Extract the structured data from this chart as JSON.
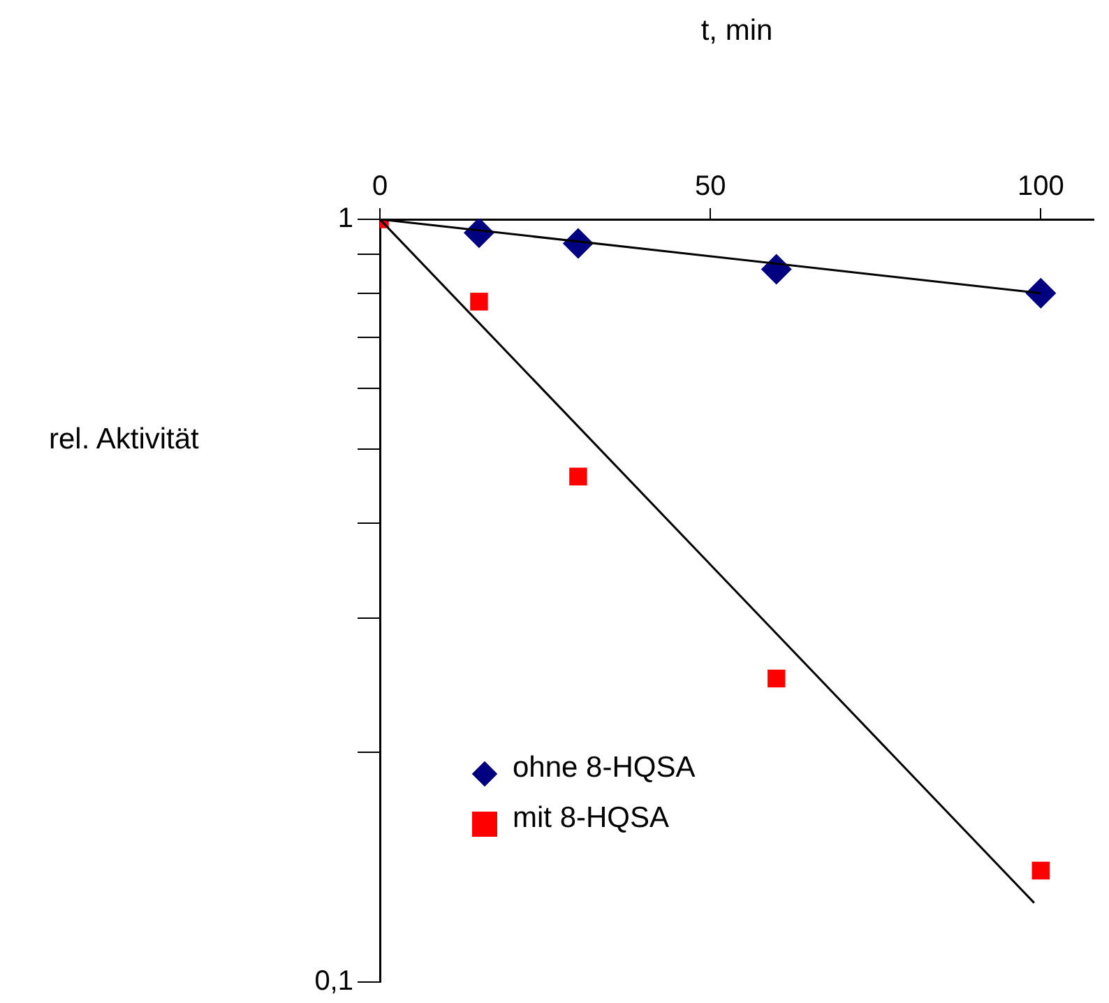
{
  "chart_data": {
    "type": "scatter",
    "xlabel": "t, min",
    "ylabel": "rel. Aktivität",
    "xlim": [
      0,
      108
    ],
    "xticks": [
      0,
      50,
      100
    ],
    "ylim": [
      0.1,
      1
    ],
    "yticks": [
      {
        "value": 0.1,
        "label": "0,1"
      },
      {
        "value": 0.2,
        "label": null
      },
      {
        "value": 0.3,
        "label": null
      },
      {
        "value": 0.4,
        "label": null
      },
      {
        "value": 0.5,
        "label": null
      },
      {
        "value": 0.6,
        "label": null
      },
      {
        "value": 0.7,
        "label": null
      },
      {
        "value": 0.8,
        "label": null
      },
      {
        "value": 0.9,
        "label": null
      },
      {
        "value": 1,
        "label": "1"
      }
    ],
    "log": "y",
    "grid": false,
    "legend": "bottom left",
    "series": [
      {
        "name": "ohne 8-HQSA",
        "color": "#000080",
        "marker": "diamond",
        "x": [
          15,
          30,
          60,
          100
        ],
        "values": [
          0.96,
          0.93,
          0.86,
          0.8
        ]
      },
      {
        "name": "mit 8-HQSA",
        "color": "#ff0000",
        "marker": "square",
        "x": [
          0,
          15,
          30,
          60,
          100
        ],
        "values": [
          1,
          0.78,
          0.46,
          0.25,
          0.14
        ]
      },
      {
        "type": "line",
        "color": "#000000",
        "marker": "none",
        "x": [
          0,
          100
        ],
        "values": [
          1,
          0.8
        ]
      },
      {
        "type": "line",
        "color": "#000000",
        "marker": "none",
        "x": [
          0,
          99
        ],
        "values": [
          1,
          0.127
        ]
      }
    ]
  }
}
